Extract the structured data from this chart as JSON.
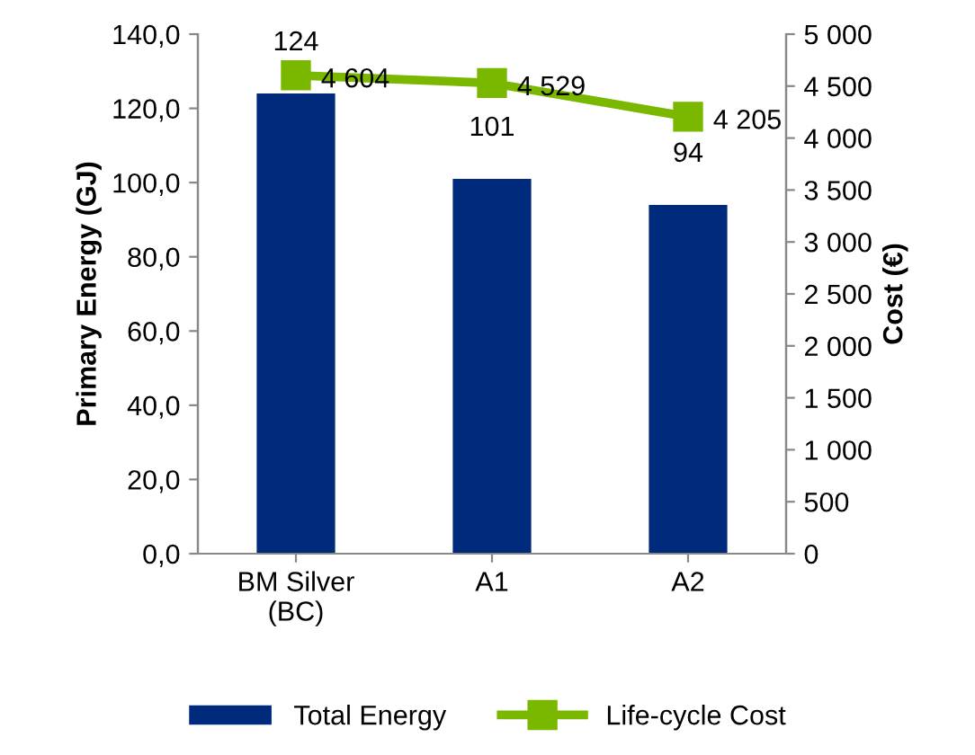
{
  "chart_data": {
    "type": "bar",
    "ylabel": "Primary Energy (GJ)",
    "y2label": "Cost (€)",
    "categories": [
      "BM Silver\n(BC)",
      "A1",
      "A2"
    ],
    "series": [
      {
        "name": "Total Energy",
        "color": "#002a7c",
        "values": [
          124,
          101,
          94
        ],
        "value_labels": [
          "124",
          "101",
          "94"
        ]
      },
      {
        "name": "Life-cycle Cost",
        "type": "line",
        "axis": "y2",
        "color": "#7ab800",
        "marker": "square",
        "values": [
          4604,
          4529,
          4205
        ],
        "value_labels": [
          "4 604",
          "4 529",
          "4 205"
        ]
      }
    ],
    "ylim": [
      0,
      140
    ],
    "yticks": [
      {
        "value": 0,
        "label": "0,0"
      },
      {
        "value": 20,
        "label": "20,0"
      },
      {
        "value": 40,
        "label": "40,0"
      },
      {
        "value": 60,
        "label": "60,0"
      },
      {
        "value": 80,
        "label": "80,0"
      },
      {
        "value": 100,
        "label": "100,0"
      },
      {
        "value": 120,
        "label": "120,0"
      },
      {
        "value": 140,
        "label": "140,0"
      }
    ],
    "y2lim": [
      0,
      5000
    ],
    "y2ticks": [
      0,
      500,
      {
        "value": 1000,
        "label": "1 000"
      },
      {
        "value": 1500,
        "label": "1 500"
      },
      {
        "value": 2000,
        "label": "2 000"
      },
      {
        "value": 2500,
        "label": "2 500"
      },
      {
        "value": 3000,
        "label": "3 000"
      },
      {
        "value": 3500,
        "label": "3 500"
      },
      {
        "value": 4000,
        "label": "4 000"
      },
      {
        "value": 4500,
        "label": "4 500"
      },
      {
        "value": 5000,
        "label": "5 000"
      }
    ],
    "grid": false,
    "legend": "bottom"
  }
}
